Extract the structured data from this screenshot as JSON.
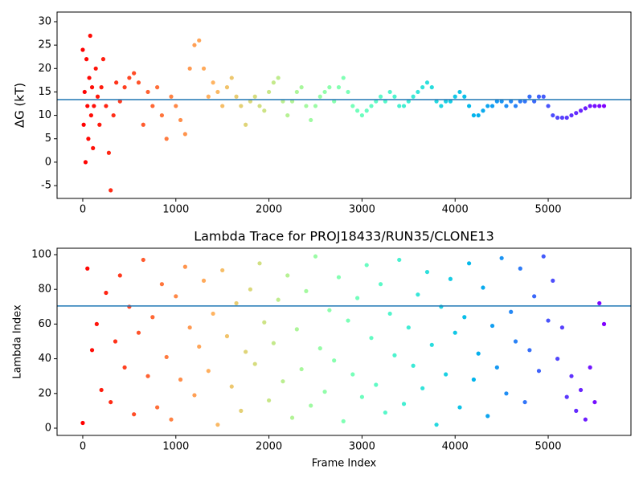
{
  "chart_data": [
    {
      "type": "scatter",
      "ylabel": "ΔG (kT)",
      "colormap": "rainbow",
      "color_reversed": true,
      "hline": 13.36,
      "hline_color": "#1f77b4",
      "xlim": [
        -276,
        5889
      ],
      "ylim": [
        -7.74,
        32.06
      ],
      "xticks": [
        0,
        1000,
        2000,
        3000,
        4000,
        5000
      ],
      "yticks": [
        -5,
        0,
        5,
        10,
        15,
        20,
        25,
        30
      ],
      "x": [
        0,
        10,
        20,
        30,
        40,
        50,
        60,
        70,
        80,
        90,
        100,
        110,
        120,
        140,
        160,
        180,
        200,
        220,
        250,
        280,
        300,
        330,
        360,
        400,
        450,
        500,
        550,
        600,
        650,
        700,
        750,
        800,
        850,
        900,
        950,
        1000,
        1050,
        1100,
        1150,
        1200,
        1250,
        1300,
        1350,
        1400,
        1450,
        1500,
        1550,
        1600,
        1650,
        1700,
        1750,
        1800,
        1850,
        1900,
        1950,
        2000,
        2050,
        2100,
        2150,
        2200,
        2250,
        2300,
        2350,
        2400,
        2450,
        2500,
        2550,
        2600,
        2650,
        2700,
        2750,
        2800,
        2850,
        2900,
        2950,
        3000,
        3050,
        3100,
        3150,
        3200,
        3250,
        3300,
        3350,
        3400,
        3450,
        3500,
        3550,
        3600,
        3650,
        3700,
        3750,
        3800,
        3850,
        3900,
        3950,
        4000,
        4050,
        4100,
        4150,
        4200,
        4250,
        4300,
        4350,
        4400,
        4450,
        4500,
        4550,
        4600,
        4650,
        4700,
        4750,
        4800,
        4850,
        4900,
        4950,
        5000,
        5050,
        5100,
        5150,
        5200,
        5250,
        5300,
        5350,
        5400,
        5450,
        5500,
        5550,
        5600
      ],
      "y": [
        24,
        8,
        15,
        0,
        22,
        12,
        5,
        18,
        27,
        10,
        16,
        3,
        12,
        20,
        14,
        8,
        16,
        22,
        12,
        2,
        -6,
        10,
        17,
        13,
        16,
        18,
        19,
        17,
        8,
        15,
        12,
        16,
        10,
        5,
        14,
        12,
        9,
        6,
        20,
        25,
        26,
        20,
        14,
        17,
        15,
        12,
        16,
        18,
        14,
        12,
        8,
        13,
        14,
        12,
        11,
        15,
        17,
        18,
        13,
        10,
        13,
        15,
        16,
        12,
        9,
        12,
        14,
        15,
        16,
        13,
        16,
        18,
        15,
        12,
        11,
        10,
        11,
        12,
        13,
        14,
        13,
        15,
        14,
        12,
        12,
        13,
        14,
        15,
        16,
        17,
        16,
        13,
        12,
        13,
        13,
        14,
        15,
        14,
        12,
        10,
        10,
        11,
        12,
        12,
        13,
        13,
        12,
        13,
        12,
        13,
        13,
        14,
        13,
        14,
        14,
        12,
        10,
        9.5,
        9.5,
        9.5,
        10,
        10.5,
        11,
        11.5,
        12,
        12,
        12,
        12
      ]
    },
    {
      "type": "scatter",
      "title": "Lambda Trace for PROJ18433/RUN35/CLONE13",
      "xlabel": "Frame Index",
      "ylabel": "Lambda Index",
      "colormap": "rainbow",
      "color_reversed": true,
      "hline": 70.4,
      "hline_color": "#1f77b4",
      "xlim": [
        -276,
        5889
      ],
      "ylim": [
        -4.17,
        103.7
      ],
      "xticks": [
        0,
        1000,
        2000,
        3000,
        4000,
        5000
      ],
      "yticks": [
        0,
        20,
        40,
        60,
        80,
        100
      ],
      "x": [
        0,
        50,
        100,
        150,
        200,
        250,
        300,
        350,
        400,
        450,
        500,
        550,
        600,
        650,
        700,
        750,
        800,
        850,
        900,
        950,
        1000,
        1050,
        1100,
        1150,
        1200,
        1250,
        1300,
        1350,
        1400,
        1450,
        1500,
        1550,
        1600,
        1650,
        1700,
        1750,
        1800,
        1850,
        1900,
        1950,
        2000,
        2050,
        2100,
        2150,
        2200,
        2250,
        2300,
        2350,
        2400,
        2450,
        2500,
        2550,
        2600,
        2650,
        2700,
        2750,
        2800,
        2850,
        2900,
        2950,
        3000,
        3050,
        3100,
        3150,
        3200,
        3250,
        3300,
        3350,
        3400,
        3450,
        3500,
        3550,
        3600,
        3650,
        3700,
        3750,
        3800,
        3850,
        3900,
        3950,
        4000,
        4050,
        4100,
        4150,
        4200,
        4250,
        4300,
        4350,
        4400,
        4450,
        4500,
        4550,
        4600,
        4650,
        4700,
        4750,
        4800,
        4850,
        4900,
        4950,
        5000,
        5050,
        5100,
        5150,
        5200,
        5250,
        5300,
        5350,
        5400,
        5450,
        5500,
        5550,
        5600
      ],
      "y": [
        3,
        92,
        45,
        60,
        22,
        78,
        15,
        50,
        88,
        35,
        70,
        8,
        55,
        97,
        30,
        64,
        12,
        83,
        41,
        5,
        76,
        28,
        93,
        58,
        19,
        47,
        85,
        33,
        66,
        2,
        91,
        53,
        24,
        72,
        10,
        44,
        80,
        37,
        95,
        61,
        16,
        49,
        74,
        27,
        88,
        6,
        57,
        34,
        79,
        13,
        99,
        46,
        21,
        68,
        39,
        87,
        4,
        62,
        31,
        75,
        18,
        94,
        52,
        25,
        83,
        9,
        66,
        42,
        97,
        14,
        58,
        36,
        77,
        23,
        90,
        48,
        2,
        70,
        31,
        86,
        55,
        12,
        64,
        95,
        28,
        43,
        81,
        7,
        59,
        35,
        98,
        20,
        67,
        50,
        92,
        15,
        45,
        76,
        33,
        99,
        62,
        85,
        40,
        58,
        18,
        30,
        10,
        22,
        5,
        35,
        15,
        72,
        60
      ]
    }
  ]
}
